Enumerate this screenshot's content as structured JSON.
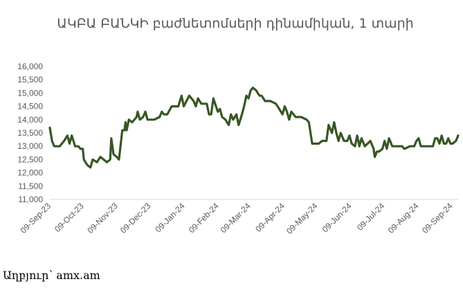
{
  "chart_data": {
    "type": "line",
    "title": "ԱԿԲԱ ԲԱՆԿԻ բաժնետոմսերի դինամիկան, 1 տարի",
    "xlabel": "",
    "ylabel": "",
    "ylim": [
      11000,
      16000
    ],
    "yticks": [
      "11,000",
      "11,500",
      "12,000",
      "12,500",
      "13,000",
      "13,500",
      "14,000",
      "14,500",
      "15,000",
      "15,500",
      "16,000"
    ],
    "xtick_labels": [
      "09-Sep-23",
      "09-Oct-23",
      "09-Nov-23",
      "09-Dec-23",
      "09-Jan-24",
      "09-Feb-24",
      "09-Mar-24",
      "09-Apr-24",
      "09-May-24",
      "09-Jun-24",
      "09-Jul-24",
      "09-Aug-24",
      "09-Sep-24"
    ],
    "grid": false,
    "line_color": "#375623",
    "series": [
      {
        "points": [
          [
            "2023-09-09",
            13700
          ],
          [
            "2023-09-11",
            13200
          ],
          [
            "2023-09-13",
            13000
          ],
          [
            "2023-09-18",
            13000
          ],
          [
            "2023-09-22",
            13200
          ],
          [
            "2023-09-25",
            13400
          ],
          [
            "2023-09-27",
            13100
          ],
          [
            "2023-09-29",
            13400
          ],
          [
            "2023-10-02",
            13000
          ],
          [
            "2023-10-05",
            13000
          ],
          [
            "2023-10-07",
            12900
          ],
          [
            "2023-10-09",
            12900
          ],
          [
            "2023-10-10",
            12500
          ],
          [
            "2023-10-13",
            12300
          ],
          [
            "2023-10-16",
            12200
          ],
          [
            "2023-10-18",
            12500
          ],
          [
            "2023-10-22",
            12400
          ],
          [
            "2023-10-25",
            12600
          ],
          [
            "2023-10-28",
            12500
          ],
          [
            "2023-10-31",
            12400
          ],
          [
            "2023-11-03",
            12500
          ],
          [
            "2023-11-04",
            13300
          ],
          [
            "2023-11-06",
            12700
          ],
          [
            "2023-11-09",
            12600
          ],
          [
            "2023-11-11",
            12500
          ],
          [
            "2023-11-14",
            13600
          ],
          [
            "2023-11-16",
            13600
          ],
          [
            "2023-11-17",
            13900
          ],
          [
            "2023-11-18",
            13600
          ],
          [
            "2023-11-20",
            14000
          ],
          [
            "2023-11-23",
            13900
          ],
          [
            "2023-11-27",
            14100
          ],
          [
            "2023-11-28",
            14300
          ],
          [
            "2023-11-30",
            14000
          ],
          [
            "2023-12-03",
            14100
          ],
          [
            "2023-12-05",
            14300
          ],
          [
            "2023-12-07",
            14000
          ],
          [
            "2023-12-13",
            14000
          ],
          [
            "2023-12-18",
            14100
          ],
          [
            "2023-12-20",
            14300
          ],
          [
            "2023-12-22",
            14200
          ],
          [
            "2023-12-25",
            14200
          ],
          [
            "2023-12-29",
            14500
          ],
          [
            "2024-01-04",
            14500
          ],
          [
            "2024-01-07",
            14900
          ],
          [
            "2024-01-09",
            14500
          ],
          [
            "2024-01-14",
            14900
          ],
          [
            "2024-01-18",
            14700
          ],
          [
            "2024-01-20",
            14500
          ],
          [
            "2024-01-22",
            14800
          ],
          [
            "2024-01-25",
            14600
          ],
          [
            "2024-01-30",
            14600
          ],
          [
            "2024-02-01",
            14200
          ],
          [
            "2024-02-03",
            14200
          ],
          [
            "2024-02-05",
            14800
          ],
          [
            "2024-02-09",
            14300
          ],
          [
            "2024-02-11",
            14400
          ],
          [
            "2024-02-13",
            14100
          ],
          [
            "2024-02-16",
            14000
          ],
          [
            "2024-02-19",
            13800
          ],
          [
            "2024-02-21",
            14200
          ],
          [
            "2024-02-23",
            14000
          ],
          [
            "2024-02-26",
            14200
          ],
          [
            "2024-02-28",
            13800
          ],
          [
            "2024-03-02",
            14200
          ],
          [
            "2024-03-04",
            14500
          ],
          [
            "2024-03-06",
            14900
          ],
          [
            "2024-03-08",
            14800
          ],
          [
            "2024-03-10",
            15100
          ],
          [
            "2024-03-12",
            15200
          ],
          [
            "2024-03-15",
            15100
          ],
          [
            "2024-03-18",
            14900
          ],
          [
            "2024-03-20",
            14900
          ],
          [
            "2024-03-23",
            14700
          ],
          [
            "2024-03-28",
            14700
          ],
          [
            "2024-04-02",
            14600
          ],
          [
            "2024-04-05",
            14400
          ],
          [
            "2024-04-08",
            14200
          ],
          [
            "2024-04-10",
            14500
          ],
          [
            "2024-04-12",
            14300
          ],
          [
            "2024-04-14",
            14000
          ],
          [
            "2024-04-16",
            14300
          ],
          [
            "2024-04-18",
            14200
          ],
          [
            "2024-04-20",
            14100
          ],
          [
            "2024-04-25",
            14100
          ],
          [
            "2024-04-30",
            14000
          ],
          [
            "2024-05-02",
            13900
          ],
          [
            "2024-05-05",
            13100
          ],
          [
            "2024-05-08",
            13100
          ],
          [
            "2024-05-11",
            13100
          ],
          [
            "2024-05-14",
            13200
          ],
          [
            "2024-05-18",
            13200
          ],
          [
            "2024-05-20",
            13800
          ],
          [
            "2024-05-23",
            13500
          ],
          [
            "2024-05-25",
            13900
          ],
          [
            "2024-05-27",
            13500
          ],
          [
            "2024-05-29",
            13200
          ],
          [
            "2024-05-31",
            13500
          ],
          [
            "2024-06-03",
            13200
          ],
          [
            "2024-06-06",
            13200
          ],
          [
            "2024-06-08",
            13400
          ],
          [
            "2024-06-10",
            13100
          ],
          [
            "2024-06-13",
            13000
          ],
          [
            "2024-06-15",
            13400
          ],
          [
            "2024-06-17",
            13000
          ],
          [
            "2024-06-19",
            13300
          ],
          [
            "2024-06-22",
            13000
          ],
          [
            "2024-06-27",
            13200
          ],
          [
            "2024-06-30",
            12900
          ],
          [
            "2024-07-01",
            12600
          ],
          [
            "2024-07-03",
            12800
          ],
          [
            "2024-07-05",
            12800
          ],
          [
            "2024-07-08",
            12900
          ],
          [
            "2024-07-10",
            13200
          ],
          [
            "2024-07-12",
            12900
          ],
          [
            "2024-07-14",
            13300
          ],
          [
            "2024-07-17",
            13000
          ],
          [
            "2024-07-22",
            13000
          ],
          [
            "2024-07-26",
            13000
          ],
          [
            "2024-07-28",
            12900
          ],
          [
            "2024-08-02",
            13000
          ],
          [
            "2024-08-06",
            13000
          ],
          [
            "2024-08-08",
            13200
          ],
          [
            "2024-08-10",
            13300
          ],
          [
            "2024-08-12",
            13000
          ],
          [
            "2024-08-16",
            13000
          ],
          [
            "2024-08-20",
            13000
          ],
          [
            "2024-08-23",
            13000
          ],
          [
            "2024-08-25",
            13300
          ],
          [
            "2024-08-27",
            13300
          ],
          [
            "2024-08-29",
            13100
          ],
          [
            "2024-08-31",
            13400
          ],
          [
            "2024-09-02",
            13100
          ],
          [
            "2024-09-04",
            13100
          ],
          [
            "2024-09-06",
            13300
          ],
          [
            "2024-09-08",
            13100
          ],
          [
            "2024-09-10",
            13100
          ],
          [
            "2024-09-13",
            13200
          ],
          [
            "2024-09-15",
            13400
          ]
        ]
      }
    ]
  },
  "source_label": "Աղբյուր՝ amx.am"
}
